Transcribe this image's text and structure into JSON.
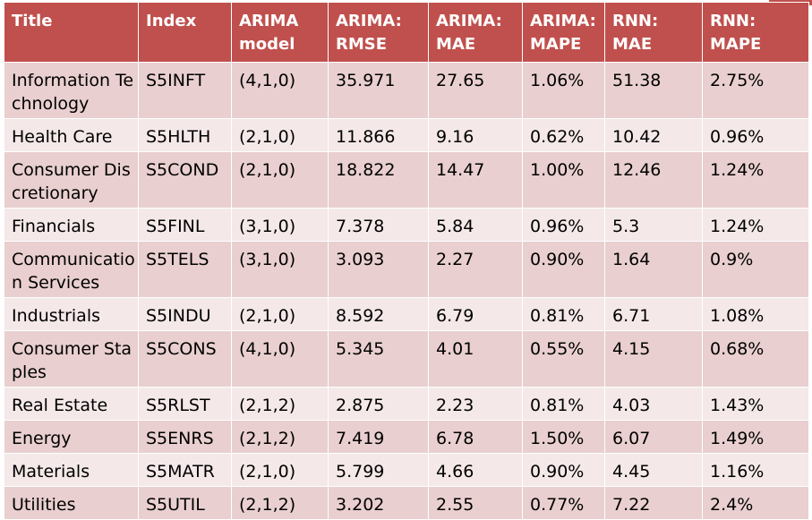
{
  "table": {
    "headers": [
      {
        "line1": "Title",
        "line2": ""
      },
      {
        "line1": "Index",
        "line2": ""
      },
      {
        "line1": "ARIMA",
        "line2": "model"
      },
      {
        "line1": "ARIMA:",
        "line2": "RMSE"
      },
      {
        "line1": "ARIMA:",
        "line2": "MAE"
      },
      {
        "line1": "ARIMA:",
        "line2": "MAPE"
      },
      {
        "line1": "RNN:",
        "line2": "MAE"
      },
      {
        "line1": "RNN:",
        "line2": "MAPE"
      }
    ],
    "rows": [
      [
        "Information Technology",
        "S5INFT",
        "(4,1,0)",
        "35.971",
        "27.65",
        "1.06%",
        "51.38",
        "2.75%"
      ],
      [
        "Health Care",
        "S5HLTH",
        "(2,1,0)",
        "11.866",
        "9.16",
        "0.62%",
        "10.42",
        "0.96%"
      ],
      [
        "Consumer Discretionary",
        "S5COND",
        "(2,1,0)",
        "18.822",
        "14.47",
        "1.00%",
        "12.46",
        "1.24%"
      ],
      [
        "Financials",
        "S5FINL",
        "(3,1,0)",
        "7.378",
        "5.84",
        "0.96%",
        "5.3",
        "1.24%"
      ],
      [
        "Communication Services",
        "S5TELS",
        "(3,1,0)",
        "3.093",
        "2.27",
        "0.90%",
        "1.64",
        "0.9%"
      ],
      [
        "Industrials",
        "S5INDU",
        "(2,1,0)",
        "8.592",
        "6.79",
        "0.81%",
        "6.71",
        "1.08%"
      ],
      [
        "Consumer Staples",
        "S5CONS",
        "(4,1,0)",
        "5.345",
        "4.01",
        "0.55%",
        "4.15",
        "0.68%"
      ],
      [
        "Real Estate",
        "S5RLST",
        "(2,1,2)",
        "2.875",
        "2.23",
        "0.81%",
        "4.03",
        "1.43%"
      ],
      [
        "Energy",
        "S5ENRS",
        "(2,1,2)",
        "7.419",
        "6.78",
        "1.50%",
        "6.07",
        "1.49%"
      ],
      [
        "Materials",
        "S5MATR",
        "(2,1,0)",
        "5.799",
        "4.66",
        "0.90%",
        "4.45",
        "1.16%"
      ],
      [
        "Utilities",
        "S5UTIL",
        "(2,1,2)",
        "3.202",
        "2.55",
        "0.77%",
        "7.22",
        "2.4%"
      ]
    ]
  },
  "colors": {
    "header_bg": "#c0504d",
    "header_text": "#ffffff",
    "row_dark": "#e9cfcf",
    "row_light": "#f4e8e8"
  }
}
